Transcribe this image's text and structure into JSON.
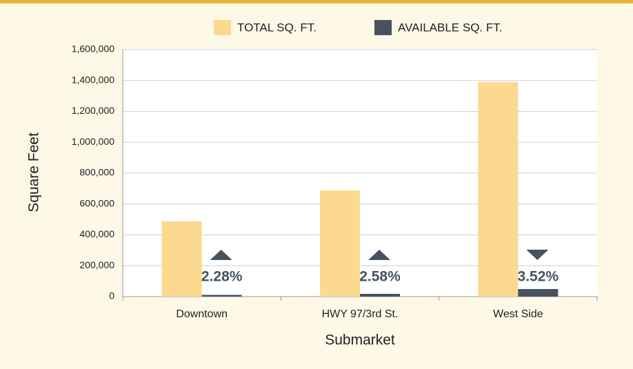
{
  "chart_data": {
    "type": "bar",
    "x_label": "Submarket",
    "y_label": "Square Feet",
    "categories": [
      "Downtown",
      "HWY 97/3rd St.",
      "West Side"
    ],
    "series": [
      {
        "name": "TOTAL SQ. FT.",
        "color": "#fbd98f",
        "values": [
          488000,
          688000,
          1390000
        ]
      },
      {
        "name": "AVAILABLE SQ. FT.",
        "color": "#46535f",
        "values": [
          11100,
          17750,
          48900
        ]
      }
    ],
    "annotations": [
      {
        "text": "2.28%",
        "direction": "up"
      },
      {
        "text": "2.58%",
        "direction": "up"
      },
      {
        "text": "3.52%",
        "direction": "down"
      }
    ],
    "ylim": [
      0,
      1600000
    ],
    "yticks": [
      0,
      {
        "value": 200000,
        "label": "200,000"
      },
      {
        "value": 400000,
        "label": "400,000"
      },
      {
        "value": 600000,
        "label": "600,000"
      },
      {
        "value": 800000,
        "label": "800,000"
      },
      {
        "value": 1000000,
        "label": "1,000,000"
      },
      {
        "value": 1200000,
        "label": "1,200,000"
      },
      {
        "value": 1400000,
        "label": "1,400,000"
      },
      {
        "value": 1600000,
        "label": "1,600,000"
      }
    ],
    "grid": true,
    "legend": "top"
  }
}
